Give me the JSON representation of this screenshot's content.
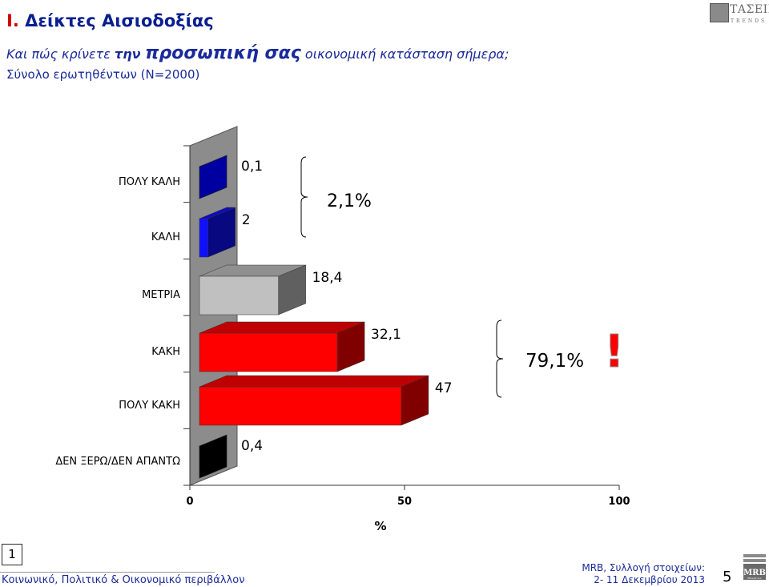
{
  "header": {
    "title_num": "I.",
    "title_text": "Δείκτες Αισιοδοξίας",
    "question_part1": "Και πώς κρίνετε ",
    "question_part2": "την ",
    "question_part3": "προσωπική σας",
    "question_part4": " οικονομική κατάσταση σήμερα;",
    "sample": "Σύνολο ερωτηθέντων (Ν=2000)"
  },
  "logo_top": {
    "main": "ΤΑΣΕΙΣ",
    "sub": "TRENDS"
  },
  "colors": {
    "accent": "#d40000",
    "text_blue": "#1a2a9a",
    "bar_blue": "#0000a0",
    "bar_gray": "#c0c0c0",
    "bar_red": "#ff0000",
    "bar_black": "#000000"
  },
  "chart_data": {
    "type": "bar",
    "orientation": "horizontal",
    "categories": [
      "ΠΟΛΥ ΚΑΛΗ",
      "ΚΑΛΗ",
      "ΜΕΤΡΙΑ",
      "ΚΑΚΗ",
      "ΠΟΛΥ ΚΑΚΗ",
      "ΔΕΝ ΞΕΡΩ/ΔΕΝ ΑΠΑΝΤΩ"
    ],
    "values": [
      0.1,
      2,
      18.4,
      32.1,
      47,
      0.4
    ],
    "value_labels": [
      "0,1",
      "2",
      "18,4",
      "32,1",
      "47",
      "0,4"
    ],
    "bar_colors": [
      "#0000a0",
      "#1010ff",
      "#c0c0c0",
      "#ff0000",
      "#ff0000",
      "#000000"
    ],
    "xlim": [
      0,
      100
    ],
    "xticks": [
      0,
      50,
      100
    ],
    "xtick_labels": [
      "0",
      "50",
      "100"
    ],
    "xlabel": "%",
    "grid": false,
    "annotations": [
      {
        "text": "2,1%",
        "groups": [
          0,
          1
        ]
      },
      {
        "text": "79,1%",
        "groups": [
          3,
          4
        ]
      }
    ],
    "exclamation": "!"
  },
  "footer": {
    "page_box": "1",
    "left": "Κοινωνικό, Πολιτικό & Οικονομικό περιβάλλον",
    "source_line1": "MRB, Συλλογή στοιχείων:",
    "source_line2": "2- 11 Δεκεμβρίου 2013",
    "page_num": "5",
    "mrb_logo": "MRB",
    "mrb_sub": "HELLAS S.A."
  }
}
